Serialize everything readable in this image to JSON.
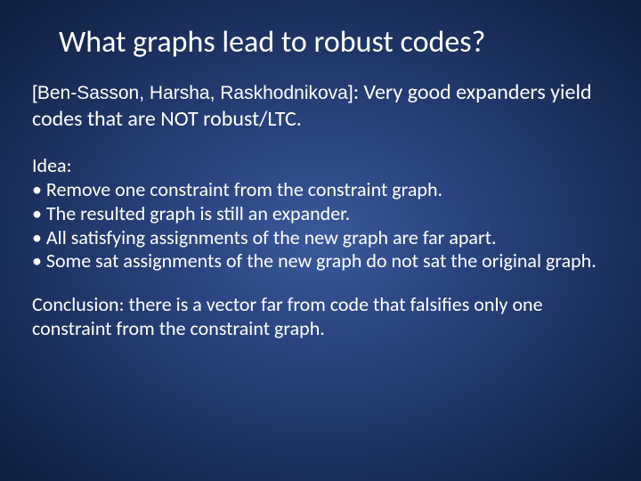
{
  "slide": {
    "background": {
      "gradient_center": "#3a5a9a",
      "gradient_mid": "#2a4580",
      "gradient_outer": "#1a2e5a",
      "gradient_edge": "#0f1d3d"
    },
    "text_color": "#ffffff",
    "title": "What  graphs lead to robust codes?",
    "title_fontsize": 34,
    "reference": {
      "authors": "[Ben-Sasson, Harsha, Raskhodnikova]",
      "body": ": Very good expanders yield codes that are NOT robust/LTC.",
      "authors_fontsize": 21,
      "body_fontsize": 24
    },
    "idea": {
      "heading": "Idea:",
      "bullets": [
        "• Remove one constraint from the constraint graph.",
        "• The resulted graph is still an expander.",
        "• All satisfying assignments of the new graph are far apart.",
        "• Some sat assignments of the new graph do not sat the original graph."
      ],
      "fontsize": 22
    },
    "conclusion": {
      "text": "Conclusion: there is a vector far from code that falsifies only one constraint from the constraint graph.",
      "fontsize": 22
    }
  }
}
